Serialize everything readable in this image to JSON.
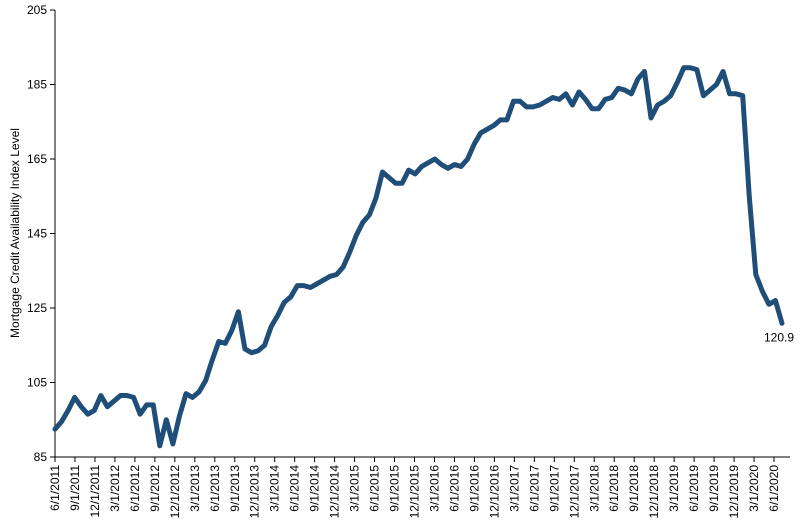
{
  "chart_data": {
    "type": "line",
    "title": "",
    "xlabel": "",
    "ylabel": "Mortgage Credit Availability Index Level",
    "ylim": [
      85,
      205
    ],
    "yticks": [
      85,
      105,
      125,
      145,
      165,
      185,
      205
    ],
    "grid": false,
    "legend": "none",
    "line_color": "#1f4e79",
    "xtick_labels": [
      "6/1/2011",
      "9/1/2011",
      "12/1/2011",
      "3/1/2012",
      "6/1/2012",
      "9/1/2012",
      "12/1/2012",
      "3/1/2013",
      "6/1/2013",
      "9/1/2013",
      "12/1/2013",
      "3/1/2014",
      "6/1/2014",
      "9/1/2014",
      "12/1/2014",
      "3/1/2015",
      "6/1/2015",
      "9/1/2015",
      "12/1/2015",
      "3/1/2016",
      "6/1/2016",
      "9/1/2016",
      "12/1/2016",
      "3/1/2017",
      "6/1/2017",
      "9/1/2017",
      "12/1/2017",
      "3/1/2018",
      "6/1/2018",
      "9/1/2018",
      "12/1/2018",
      "3/1/2019",
      "6/1/2019",
      "9/1/2019",
      "12/1/2019",
      "3/1/2020",
      "6/1/2020"
    ],
    "series": [
      {
        "name": "",
        "values": [
          92.5,
          94.5,
          97.5,
          101,
          98.5,
          96.5,
          97.5,
          101.5,
          98.5,
          100,
          101.5,
          101.5,
          101,
          96.5,
          99,
          99,
          88,
          95,
          88.5,
          96,
          102,
          101,
          102.5,
          105.5,
          111,
          116,
          115.5,
          119,
          124,
          114,
          113,
          113.5,
          115,
          120,
          123,
          126.5,
          128,
          131,
          131,
          130.5,
          131.5,
          132.5,
          133.5,
          134,
          136,
          140,
          144.5,
          148,
          150,
          154.5,
          161.5,
          160,
          158.5,
          158.5,
          162,
          161,
          163,
          164,
          165,
          163.5,
          162.5,
          163.5,
          163,
          165,
          169,
          172,
          173,
          174,
          175.5,
          175.5,
          180.5,
          180.5,
          179,
          179,
          179.5,
          180.5,
          181.5,
          181,
          182.5,
          179.5,
          183,
          181,
          178.5,
          178.5,
          181,
          181.5,
          184,
          183.5,
          182.5,
          186.5,
          188.5,
          176,
          179.5,
          180.5,
          182,
          185.5,
          189.5,
          189.5,
          189,
          182,
          183.5,
          185,
          188.5,
          182.5,
          182.5,
          182,
          155,
          134,
          129.5,
          126,
          127,
          120.9
        ]
      }
    ],
    "annotations": [
      {
        "text": "120.9",
        "series_index": 0,
        "point": "last"
      }
    ]
  }
}
